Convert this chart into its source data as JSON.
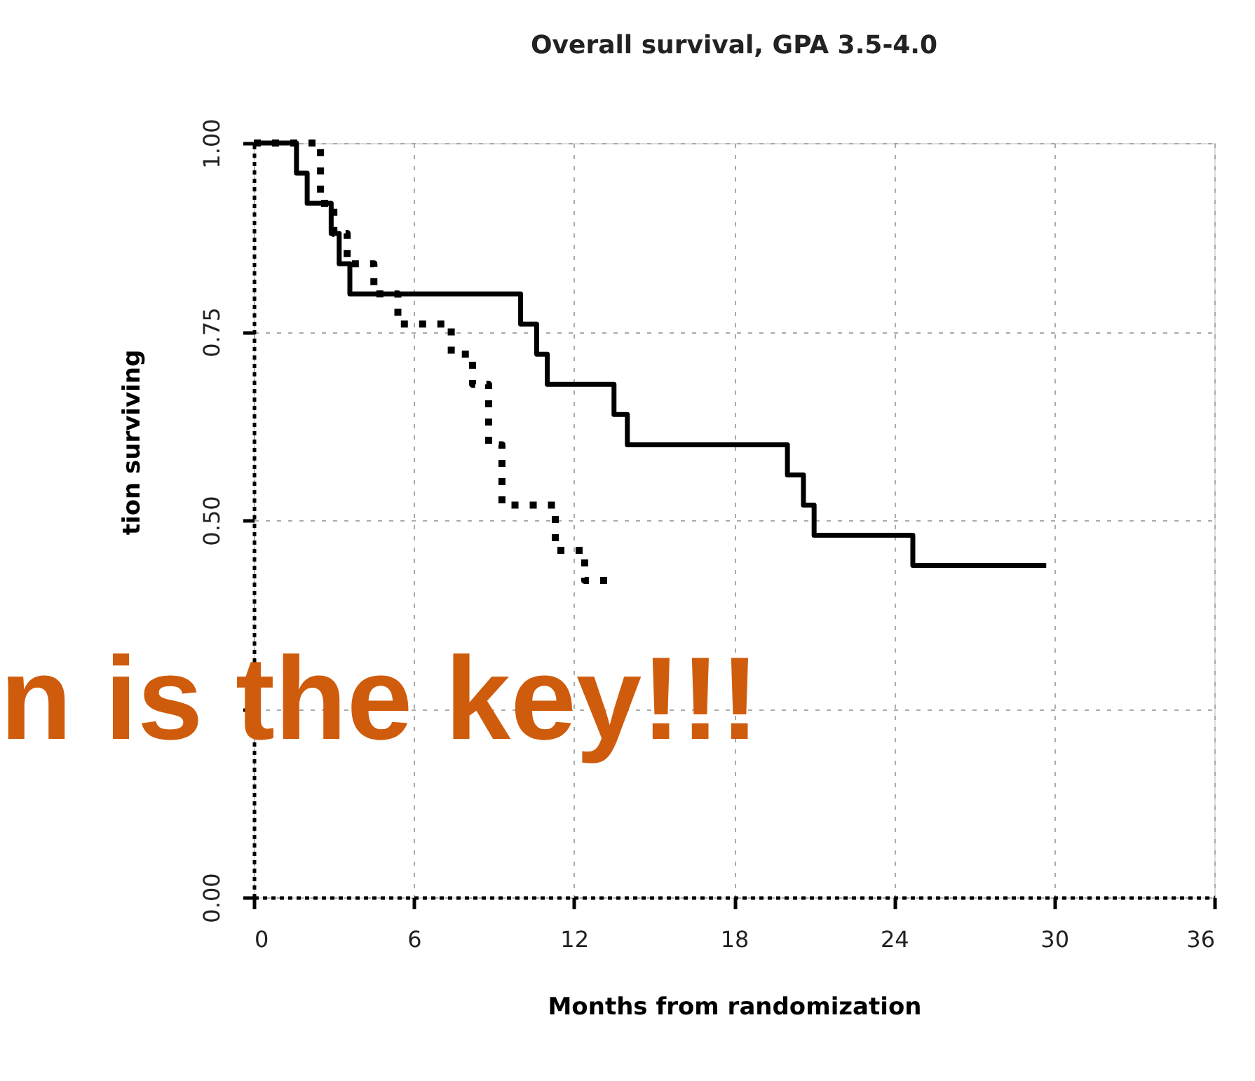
{
  "chart_data": {
    "type": "step",
    "title": "Overall survival, GPA 3.5-4.0",
    "xlabel": "Months from randomization",
    "ylabel": "tion surviving",
    "annotations": [
      "n is the key!!!"
    ],
    "xlim": [
      0,
      36
    ],
    "xticks": [
      0,
      6,
      12,
      18,
      24,
      30,
      36
    ],
    "ylim": [
      0,
      1
    ],
    "yticks": [
      {
        "value": 0,
        "label": "0.00"
      },
      {
        "value": 0.25,
        "label": null
      },
      {
        "value": 0.5,
        "label": "0.50"
      },
      {
        "value": 0.75,
        "label": "0.75"
      },
      {
        "value": 1,
        "label": "1.00"
      }
    ],
    "grid": true,
    "series": [
      {
        "color": "#000000",
        "line_style": "solid",
        "x": [
          0,
          1.6,
          2,
          2.9,
          3.2,
          3.6,
          10,
          10.6,
          11,
          13.5,
          14,
          20,
          20.6,
          21,
          24.7,
          29.7
        ],
        "values": [
          1,
          0.96,
          0.92,
          0.88,
          0.84,
          0.8,
          0.76,
          0.72,
          0.68,
          0.64,
          0.6,
          0.56,
          0.52,
          0.48,
          0.44,
          0.44
        ]
      },
      {
        "color": "#000000",
        "line_style": "dotted",
        "x": [
          0,
          2.5,
          3,
          3.5,
          4.5,
          5.4,
          7.4,
          8.2,
          8.8,
          9.3,
          11.3,
          12.4,
          13.5
        ],
        "values": [
          1,
          0.92,
          0.88,
          0.84,
          0.8,
          0.76,
          0.72,
          0.68,
          0.6,
          0.52,
          0.46,
          0.42,
          0.42
        ]
      }
    ]
  }
}
